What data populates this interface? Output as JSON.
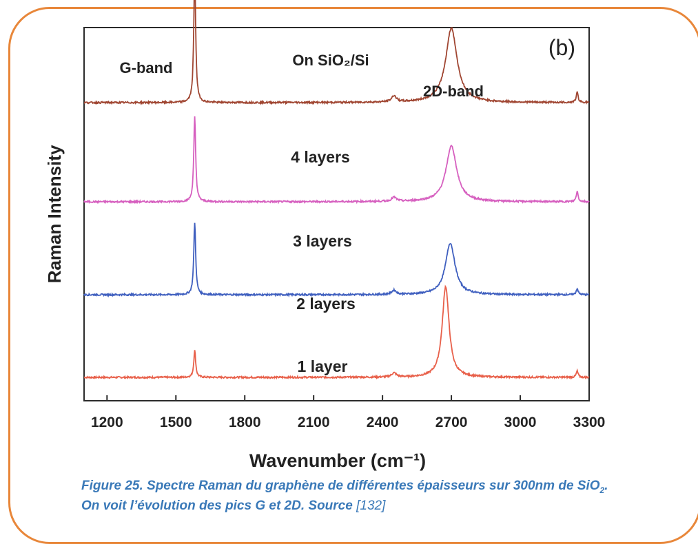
{
  "chart_data": {
    "type": "line",
    "panel_label": "(b)",
    "title": "On SiO₂/Si",
    "xlabel": "Wavenumber (cm⁻¹)",
    "ylabel": "Raman Intensity",
    "xlim": [
      1100,
      3300
    ],
    "x_ticks": [
      1200,
      1500,
      1800,
      2100,
      2400,
      2700,
      3000,
      3300
    ],
    "annotations": {
      "g_band": "G-band",
      "d2_band": "2D-band"
    },
    "series": [
      {
        "name": "1 layer",
        "color": "#e8604a",
        "baseline": 0.0,
        "peaks": [
          {
            "center": 1582,
            "width": 5,
            "height": 0.13
          },
          {
            "center": 2450,
            "width": 12,
            "height": 0.02
          },
          {
            "center": 2675,
            "width": 18,
            "height": 0.44
          },
          {
            "center": 3248,
            "width": 5,
            "height": 0.03
          }
        ]
      },
      {
        "name": "2 layers",
        "color": "#3f5fbf",
        "baseline": 0.4,
        "peaks": [
          {
            "center": 1582,
            "width": 5,
            "height": 0.35
          },
          {
            "center": 2450,
            "width": 12,
            "height": 0.02
          },
          {
            "center": 2695,
            "width": 25,
            "height": 0.25
          },
          {
            "center": 3248,
            "width": 5,
            "height": 0.03
          }
        ]
      },
      {
        "name": "3 layers",
        "color": "#d65fbf",
        "baseline": 0.85,
        "peaks": [
          {
            "center": 1582,
            "width": 5,
            "height": 0.41
          },
          {
            "center": 2450,
            "width": 12,
            "height": 0.02
          },
          {
            "center": 2700,
            "width": 28,
            "height": 0.27
          },
          {
            "center": 3248,
            "width": 5,
            "height": 0.05
          }
        ]
      },
      {
        "name": "4 layers",
        "color": "#a04632",
        "baseline": 1.33,
        "peaks": [
          {
            "center": 1582,
            "width": 5,
            "height": 0.63
          },
          {
            "center": 2450,
            "width": 12,
            "height": 0.03
          },
          {
            "center": 2700,
            "width": 30,
            "height": 0.36
          },
          {
            "center": 3248,
            "width": 5,
            "height": 0.05
          }
        ]
      }
    ],
    "series_labels": [
      "1 layer",
      "2 layers",
      "3 layers",
      "4 layers"
    ]
  },
  "caption": {
    "line1_prefix": "Figure 25. Spectre Raman du graphène de différentes épaisseurs sur 300nm de SiO",
    "line1_sub": "2",
    "line1_suffix": ".",
    "line2_text": "On voit l’évolution des pics G et 2D. Source ",
    "line2_ref": "[132]"
  }
}
